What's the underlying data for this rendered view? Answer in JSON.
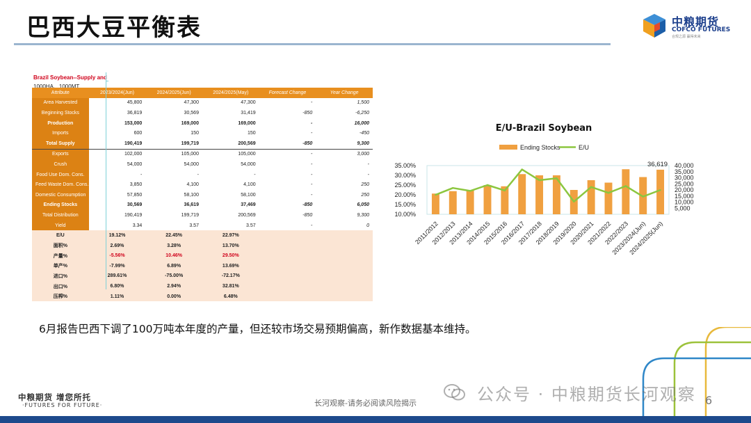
{
  "page": {
    "title": "巴西大豆平衡表",
    "logo_cn": "中粮期货",
    "logo_en": "COFCO FUTURES",
    "logo_sub": "合规之源  赢得未来",
    "caption": "6月报告巴西下调了100万吨本年度的产量，但还较市场交易预期偏高，新作数据基本维持。",
    "footer_logo": "中粮期货  增您所托",
    "footer_sub": "·FUTURES FOR FUTURE·",
    "footer_note": "长河观察-请务必阅读风险揭示",
    "watermark": "公众号 · 中粮期货长河观察",
    "page_number": "6"
  },
  "table": {
    "title": "Brazil Soybean--Supply and",
    "unit": "1000HA、1000MT",
    "headers": [
      "Attribute",
      "2023/2024(Jun)",
      "2024/2025(Jun)",
      "2024/2025(May)",
      "Forecast Change",
      "Year Change"
    ],
    "rows": [
      [
        "Area Harvested",
        "45,800",
        "47,300",
        "47,300",
        "-",
        "1,500"
      ],
      [
        "Beginning Stocks",
        "36,819",
        "30,569",
        "31,419",
        "-850",
        "-6,250"
      ],
      [
        "Production",
        "153,000",
        "169,000",
        "169,000",
        "-",
        "16,000"
      ],
      [
        "Imports",
        "600",
        "150",
        "150",
        "-",
        "-450"
      ],
      [
        "Total Supply",
        "190,419",
        "199,719",
        "200,569",
        "-850",
        "9,300"
      ],
      [
        "Exports",
        "102,000",
        "105,000",
        "105,000",
        "-",
        "3,000"
      ],
      [
        "Crush",
        "54,000",
        "54,000",
        "54,000",
        "-",
        "-"
      ],
      [
        "Food Use Dom. Cons.",
        "-",
        "-",
        "-",
        "-",
        "-"
      ],
      [
        "Feed Waste Dom. Cons.",
        "3,850",
        "4,100",
        "4,100",
        "-",
        "250"
      ],
      [
        "Domestic Consumption",
        "57,850",
        "58,100",
        "58,100",
        "-",
        "250"
      ],
      [
        "Ending Stocks",
        "30,569",
        "36,619",
        "37,469",
        "-850",
        "6,050"
      ],
      [
        "Total Distribution",
        "190,419",
        "199,719",
        "200,569",
        "-850",
        "9,300"
      ],
      [
        "Yield",
        "3.34",
        "3.57",
        "3.57",
        "-",
        "0"
      ]
    ],
    "ratio_rows": [
      [
        "E/U",
        "19.12%",
        "22.45%",
        "22.97%"
      ],
      [
        "面积%",
        "2.69%",
        "3.28%",
        "13.70%"
      ],
      [
        "产量%",
        "-5.56%",
        "10.46%",
        "29.50%"
      ],
      [
        "单产%",
        "-7.99%",
        "6.89%",
        "13.69%"
      ],
      [
        "进口%",
        "289.61%",
        "-75.00%",
        "-72.17%"
      ],
      [
        "出口%",
        "6.80%",
        "2.94%",
        "32.81%"
      ],
      [
        "压榨%",
        "1.11%",
        "0.00%",
        "6.48%"
      ]
    ]
  },
  "chart_data": {
    "type": "bar",
    "title": "E/U-Brazil Soybean",
    "categories": [
      "2011/2012",
      "2012/2013",
      "2013/2014",
      "2014/2015",
      "2015/2016",
      "2016/2017",
      "2017/2018",
      "2018/2019",
      "2019/2020",
      "2020/2021",
      "2021/2022",
      "2022/2023",
      "2023/2024(Jun)",
      "2024/2025(Jun)"
    ],
    "series": [
      {
        "name": "Ending Stocks",
        "kind": "bar",
        "axis": "right",
        "color": "#f0a040",
        "values": [
          17000,
          19000,
          19500,
          24000,
          23000,
          33000,
          32000,
          32000,
          20000,
          28000,
          26000,
          37000,
          30569,
          36619
        ]
      },
      {
        "name": "E/U",
        "kind": "line",
        "axis": "left",
        "color": "#8cc63f",
        "values": [
          0.2,
          0.235,
          0.22,
          0.25,
          0.222,
          0.33,
          0.275,
          0.285,
          0.165,
          0.24,
          0.21,
          0.245,
          0.191,
          0.2245
        ]
      }
    ],
    "y_left": {
      "min": 0.1,
      "max": 0.35,
      "ticks": [
        "10.00%",
        "15.00%",
        "20.00%",
        "25.00%",
        "30.00%",
        "35.00%"
      ]
    },
    "y_right": {
      "min": 0,
      "max": 40000,
      "ticks": [
        "5,000",
        "10,000",
        "15,000",
        "20,000",
        "25,000",
        "30,000",
        "35,000",
        "40,000"
      ]
    },
    "annotation": "36,619",
    "legend": "top"
  }
}
